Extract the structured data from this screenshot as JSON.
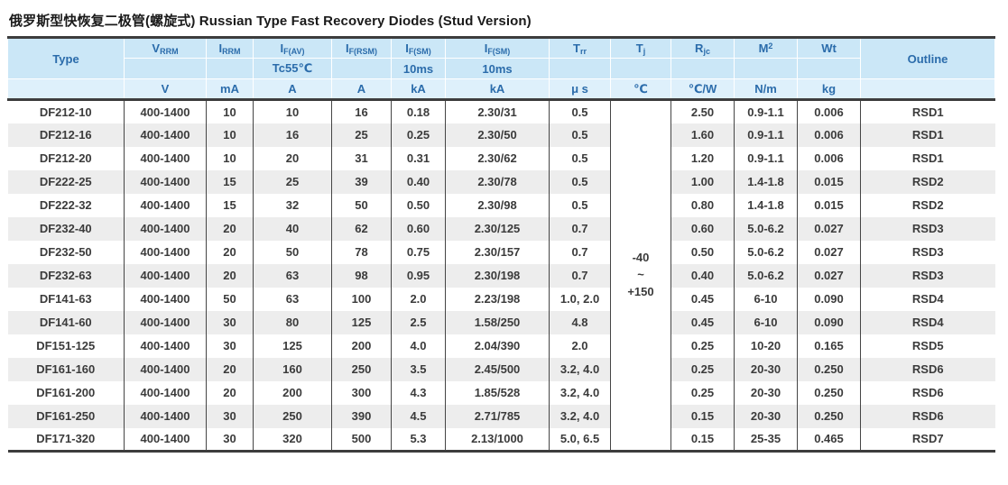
{
  "title": "俄罗斯型快恢复二极管(螺旋式) Russian Type Fast Recovery Diodes (Stud Version)",
  "colors": {
    "header_bg": "#cbe7f7",
    "header_units_bg": "#def0fb",
    "header_text": "#2b6cab",
    "row_stripe": "#ededed",
    "data_text": "#3b3b3b",
    "heavy_rule": "#3d3d3d"
  },
  "table": {
    "columns": [
      {
        "id": "type",
        "label": "Type"
      },
      {
        "id": "vrrm",
        "main": "V",
        "sub": "RRM",
        "cond": "",
        "unit": "V"
      },
      {
        "id": "irrm",
        "main": "I",
        "sub": "RRM",
        "cond": "",
        "unit": "mA"
      },
      {
        "id": "ifav",
        "main": "I",
        "sub": "F(AV)",
        "cond": "Tc55℃",
        "unit": "A"
      },
      {
        "id": "ifrsm",
        "main": "I",
        "sub": "F(RSM)",
        "cond": "",
        "unit": "A"
      },
      {
        "id": "ifsm1",
        "main": "I",
        "sub": "F(SM)",
        "cond": "10ms",
        "unit": "kA"
      },
      {
        "id": "ifsm2",
        "main": "I",
        "sub": "F(SM)",
        "cond": "10ms",
        "unit": "kA"
      },
      {
        "id": "trr",
        "main": "T",
        "sub": "rr",
        "cond": "",
        "unit": "μ s"
      },
      {
        "id": "tj",
        "main": "T",
        "sub": "j",
        "cond": "",
        "unit": "℃"
      },
      {
        "id": "rjc",
        "main": "R",
        "sub": "jc",
        "cond": "",
        "unit": "℃/W"
      },
      {
        "id": "m2",
        "main": "M",
        "sup": "2",
        "cond": "",
        "unit": "N/m"
      },
      {
        "id": "wt",
        "main": "Wt",
        "cond": "",
        "unit": "kg"
      },
      {
        "id": "outline",
        "label": "Outline"
      }
    ],
    "tj_range": [
      "-40",
      "~",
      "+150"
    ],
    "rows": [
      [
        "DF212-10",
        "400-1400",
        "10",
        "10",
        "16",
        "0.18",
        "2.30/31",
        "0.5",
        "2.50",
        "0.9-1.1",
        "0.006",
        "RSD1"
      ],
      [
        "DF212-16",
        "400-1400",
        "10",
        "16",
        "25",
        "0.25",
        "2.30/50",
        "0.5",
        "1.60",
        "0.9-1.1",
        "0.006",
        "RSD1"
      ],
      [
        "DF212-20",
        "400-1400",
        "10",
        "20",
        "31",
        "0.31",
        "2.30/62",
        "0.5",
        "1.20",
        "0.9-1.1",
        "0.006",
        "RSD1"
      ],
      [
        "DF222-25",
        "400-1400",
        "15",
        "25",
        "39",
        "0.40",
        "2.30/78",
        "0.5",
        "1.00",
        "1.4-1.8",
        "0.015",
        "RSD2"
      ],
      [
        "DF222-32",
        "400-1400",
        "15",
        "32",
        "50",
        "0.50",
        "2.30/98",
        "0.5",
        "0.80",
        "1.4-1.8",
        "0.015",
        "RSD2"
      ],
      [
        "DF232-40",
        "400-1400",
        "20",
        "40",
        "62",
        "0.60",
        "2.30/125",
        "0.7",
        "0.60",
        "5.0-6.2",
        "0.027",
        "RSD3"
      ],
      [
        "DF232-50",
        "400-1400",
        "20",
        "50",
        "78",
        "0.75",
        "2.30/157",
        "0.7",
        "0.50",
        "5.0-6.2",
        "0.027",
        "RSD3"
      ],
      [
        "DF232-63",
        "400-1400",
        "20",
        "63",
        "98",
        "0.95",
        "2.30/198",
        "0.7",
        "0.40",
        "5.0-6.2",
        "0.027",
        "RSD3"
      ],
      [
        "DF141-63",
        "400-1400",
        "50",
        "63",
        "100",
        "2.0",
        "2.23/198",
        "1.0, 2.0",
        "0.45",
        "6-10",
        "0.090",
        "RSD4"
      ],
      [
        "DF141-60",
        "400-1400",
        "30",
        "80",
        "125",
        "2.5",
        "1.58/250",
        "4.8",
        "0.45",
        "6-10",
        "0.090",
        "RSD4"
      ],
      [
        "DF151-125",
        "400-1400",
        "30",
        "125",
        "200",
        "4.0",
        "2.04/390",
        "2.0",
        "0.25",
        "10-20",
        "0.165",
        "RSD5"
      ],
      [
        "DF161-160",
        "400-1400",
        "20",
        "160",
        "250",
        "3.5",
        "2.45/500",
        "3.2, 4.0",
        "0.25",
        "20-30",
        "0.250",
        "RSD6"
      ],
      [
        "DF161-200",
        "400-1400",
        "20",
        "200",
        "300",
        "4.3",
        "1.85/528",
        "3.2, 4.0",
        "0.25",
        "20-30",
        "0.250",
        "RSD6"
      ],
      [
        "DF161-250",
        "400-1400",
        "30",
        "250",
        "390",
        "4.5",
        "2.71/785",
        "3.2, 4.0",
        "0.15",
        "20-30",
        "0.250",
        "RSD6"
      ],
      [
        "DF171-320",
        "400-1400",
        "30",
        "320",
        "500",
        "5.3",
        "2.13/1000",
        "5.0, 6.5",
        "0.15",
        "25-35",
        "0.465",
        "RSD7"
      ]
    ]
  }
}
